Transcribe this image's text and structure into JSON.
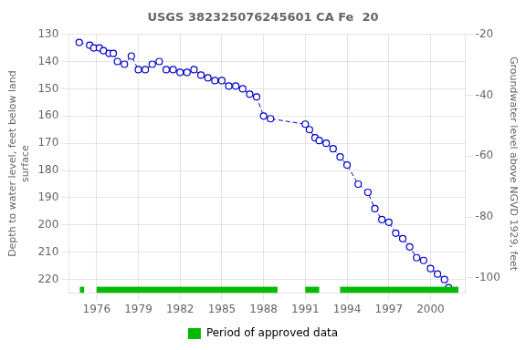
{
  "chart_data": {
    "type": "line",
    "title": "USGS 382325076245601 CA Fe  20",
    "y_label": "Depth to water level, feet below land\nsurface",
    "y2_label": "Groundwater level above NGVD 1929, feet",
    "x": [
      1974.75,
      1975.5,
      1975.8,
      1976.2,
      1976.5,
      1976.9,
      1977.2,
      1977.5,
      1978.0,
      1978.5,
      1979.0,
      1979.5,
      1980.0,
      1980.5,
      1981.0,
      1981.5,
      1982.0,
      1982.5,
      1983.0,
      1983.5,
      1984.0,
      1984.5,
      1985.0,
      1985.5,
      1986.0,
      1986.5,
      1987.0,
      1987.5,
      1988.0,
      1988.5,
      1991.0,
      1991.3,
      1991.7,
      1992.0,
      1992.5,
      1993.0,
      1993.5,
      1994.0,
      1994.8,
      1995.5,
      1996.0,
      1996.5,
      1997.0,
      1997.5,
      1998.0,
      1998.5,
      1999.0,
      1999.5,
      2000.0,
      2000.5,
      2001.0,
      2001.3
    ],
    "series": [
      {
        "color": "#0000cc",
        "marker": "circle",
        "line_style": "dashed",
        "values": [
          133,
          134,
          135,
          135,
          136,
          137,
          137,
          140,
          141,
          138,
          143,
          143,
          141,
          140,
          143,
          143,
          144,
          144,
          143,
          145,
          146,
          147,
          147,
          149,
          149,
          150,
          152,
          153,
          160,
          161,
          163,
          165,
          168,
          169,
          170,
          172,
          175,
          178,
          185,
          188,
          194,
          198,
          199,
          203,
          205,
          208,
          212,
          213,
          216,
          218,
          220,
          223
        ]
      }
    ],
    "approved_periods": {
      "name": "Period of approved data",
      "color": "#00bb00",
      "ranges": [
        [
          1974.8,
          1975.1
        ],
        [
          1976.0,
          1989.0
        ],
        [
          1991.0,
          1992.0
        ],
        [
          1993.5,
          2002.0
        ]
      ]
    },
    "xlim": [
      1974.0,
      2002.5
    ],
    "xticks": [
      1976,
      1979,
      1982,
      1985,
      1988,
      1991,
      1994,
      1997,
      2000
    ],
    "ylim": [
      225,
      130
    ],
    "yticks": [
      130,
      140,
      150,
      160,
      170,
      180,
      190,
      200,
      210,
      220
    ],
    "y2lim": [
      -105,
      -20
    ],
    "y2ticks": [
      -20,
      -40,
      -60,
      -80,
      -100
    ],
    "grid": true,
    "legend": "bottom"
  }
}
